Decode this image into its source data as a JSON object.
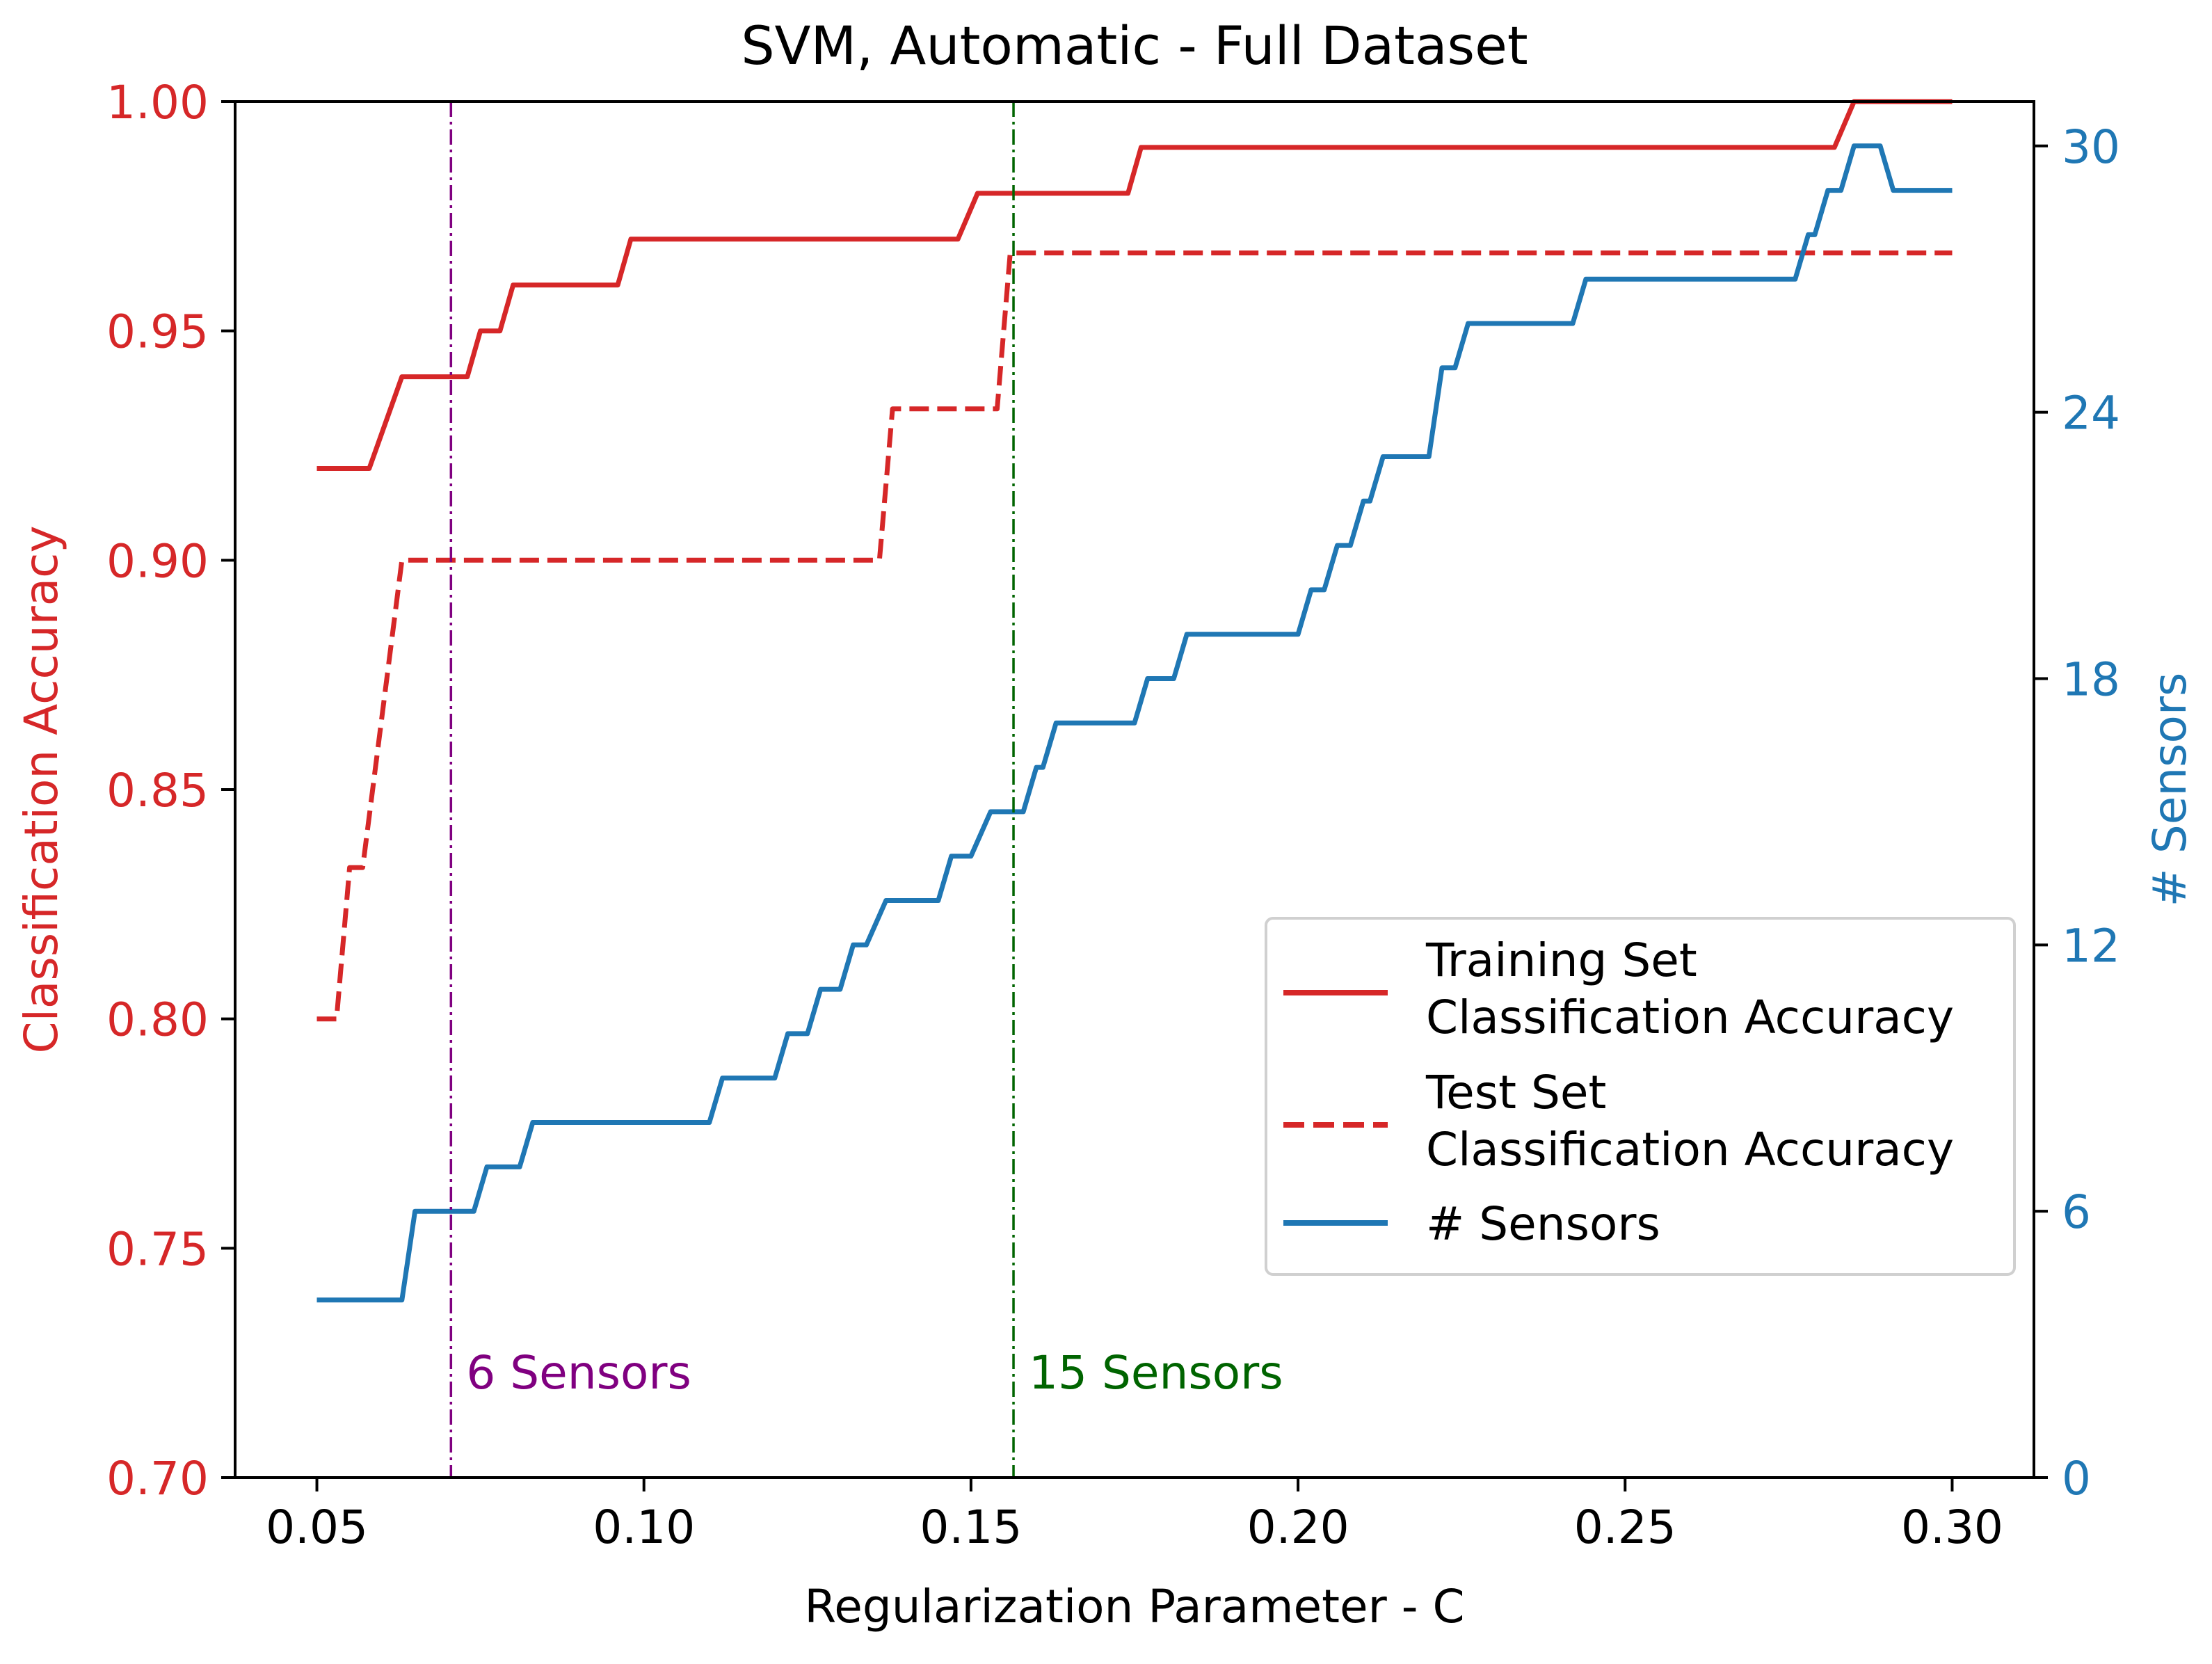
{
  "chart_data": {
    "type": "line",
    "title": "SVM, Automatic - Full Dataset",
    "xlabel": "Regularization Parameter - C",
    "ylabel": "Classification Accuracy",
    "y2label": "# Sensors",
    "xlim": [
      0.0375,
      0.3125
    ],
    "ylim": [
      0.7,
      1.0
    ],
    "y2lim": [
      0,
      31
    ],
    "x_ticks": [
      0.05,
      0.1,
      0.15,
      0.2,
      0.25,
      0.3
    ],
    "x_tick_labels": [
      "0.05",
      "0.10",
      "0.15",
      "0.20",
      "0.25",
      "0.30"
    ],
    "y_ticks": [
      0.7,
      0.75,
      0.8,
      0.85,
      0.9,
      0.95,
      1.0
    ],
    "y_tick_labels": [
      "0.70",
      "0.75",
      "0.80",
      "0.85",
      "0.90",
      "0.95",
      "1.00"
    ],
    "y2_ticks": [
      0,
      6,
      12,
      18,
      24,
      30
    ],
    "y2_tick_labels": [
      "0",
      "6",
      "12",
      "18",
      "24",
      "30"
    ],
    "colors": {
      "accuracy": "#d62728",
      "sensors": "#1f77b4",
      "marker6": "#800080",
      "marker15": "#006400"
    },
    "series": [
      {
        "name": "Training Set\nClassification Accuracy",
        "label_lines": [
          "Training Set",
          "Classification Accuracy"
        ],
        "axis": "left",
        "color": "#d62728",
        "style": "solid",
        "x": [
          0.05,
          0.058,
          0.063,
          0.07,
          0.073,
          0.075,
          0.077,
          0.078,
          0.08,
          0.096,
          0.098,
          0.148,
          0.151,
          0.174,
          0.176,
          0.282,
          0.285,
          0.3
        ],
        "y": [
          0.92,
          0.92,
          0.94,
          0.94,
          0.94,
          0.95,
          0.95,
          0.95,
          0.96,
          0.96,
          0.97,
          0.97,
          0.98,
          0.98,
          0.99,
          0.99,
          1.0,
          1.0
        ]
      },
      {
        "name": "Test Set\nClassification Accuracy",
        "label_lines": [
          "Test Set",
          "Classification Accuracy"
        ],
        "axis": "left",
        "color": "#d62728",
        "style": "dashed",
        "x": [
          0.05,
          0.053,
          0.055,
          0.057,
          0.063,
          0.136,
          0.138,
          0.154,
          0.156,
          0.3
        ],
        "y": [
          0.8,
          0.8,
          0.833,
          0.833,
          0.9,
          0.9,
          0.933,
          0.933,
          0.967,
          0.967
        ]
      },
      {
        "name": "# Sensors",
        "label_lines": [
          "# Sensors"
        ],
        "axis": "right",
        "color": "#1f77b4",
        "style": "solid",
        "x": [
          0.05,
          0.063,
          0.065,
          0.074,
          0.076,
          0.081,
          0.083,
          0.086,
          0.097,
          0.11,
          0.112,
          0.12,
          0.122,
          0.125,
          0.127,
          0.13,
          0.132,
          0.134,
          0.137,
          0.145,
          0.147,
          0.15,
          0.153,
          0.158,
          0.16,
          0.161,
          0.163,
          0.164,
          0.166,
          0.175,
          0.177,
          0.181,
          0.183,
          0.184,
          0.186,
          0.2,
          0.202,
          0.204,
          0.206,
          0.208,
          0.21,
          0.211,
          0.213,
          0.22,
          0.222,
          0.224,
          0.226,
          0.242,
          0.244,
          0.245,
          0.247,
          0.276,
          0.278,
          0.279,
          0.281,
          0.283,
          0.285,
          0.289,
          0.291,
          0.294,
          0.3
        ],
        "y": [
          4,
          4,
          6,
          6,
          7,
          7,
          8,
          8,
          8,
          8,
          9,
          9,
          10,
          10,
          11,
          11,
          12,
          12,
          13,
          13,
          14,
          14,
          15,
          15,
          16,
          16,
          17,
          17,
          17,
          17,
          18,
          18,
          19,
          19,
          19,
          19,
          20,
          20,
          21,
          21,
          22,
          22,
          23,
          23,
          25,
          25,
          26,
          26,
          27,
          27,
          27,
          27,
          28,
          28,
          29,
          29,
          30,
          30,
          29,
          29,
          29
        ]
      }
    ],
    "vlines": [
      {
        "x": 0.0705,
        "label": "6 Sensors",
        "color": "#800080"
      },
      {
        "x": 0.1565,
        "label": "15 Sensors",
        "color": "#006400"
      }
    ],
    "legend_position": "center-right"
  }
}
